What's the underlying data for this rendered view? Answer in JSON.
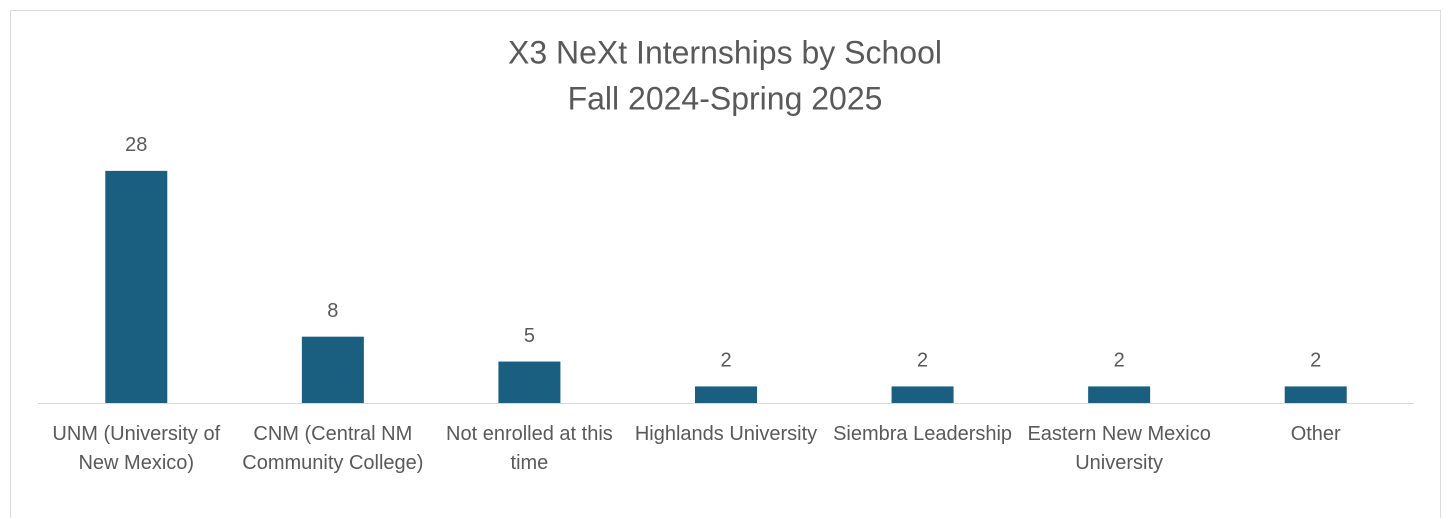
{
  "chart_data": {
    "type": "bar",
    "title": "X3 NeXt Internships by School",
    "subtitle": "Fall 2024-Spring 2025",
    "categories": [
      "UNM (University of New Mexico)",
      "CNM (Central NM Community College)",
      "Not enrolled at this time",
      "Highlands University",
      "Siembra Leadership",
      "Eastern New Mexico University",
      "Other"
    ],
    "values": [
      28,
      8,
      5,
      2,
      2,
      2,
      2
    ],
    "color": "#1a5e80"
  }
}
